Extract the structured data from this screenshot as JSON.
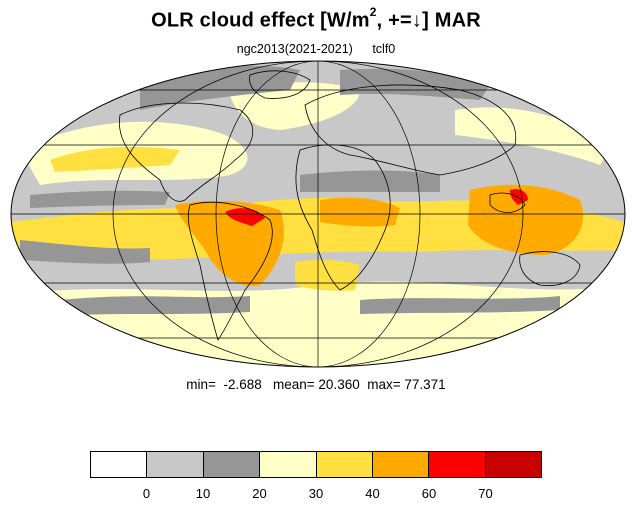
{
  "title": {
    "main": "OLR cloud effect [W/m",
    "sup": "2",
    "tail": ", +=↓]  MAR"
  },
  "subtitle": {
    "case": "ngc2013(2021-2021)",
    "var": "tclf0"
  },
  "stats": {
    "min_label": "min=",
    "min": "-2.688",
    "mean_label": "mean=",
    "mean": "20.360",
    "max_label": "max=",
    "max": "77.371"
  },
  "legend": {
    "colors": [
      "#ffffff",
      "#c8c8c8",
      "#969696",
      "#ffffc8",
      "#ffe040",
      "#ffaa00",
      "#ff0000",
      "#c80000"
    ],
    "tick_labels": [
      "0",
      "10",
      "20",
      "30",
      "40",
      "60",
      "70"
    ]
  },
  "map": {
    "projection": "mollweide",
    "colors": {
      "ocean_base": "#c8c8c8",
      "gray_dark": "#969696",
      "light_yellow": "#ffffc8",
      "yellow": "#ffe040",
      "orange": "#ffaa00",
      "red": "#ff0000",
      "grid": "#000000",
      "coast": "#000000"
    }
  }
}
